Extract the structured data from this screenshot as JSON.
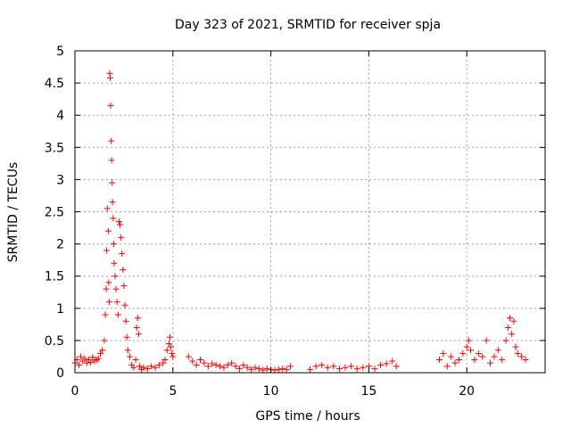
{
  "chart_data": {
    "type": "scatter",
    "title": "Day 323 of 2021, SRMTID for receiver spja",
    "xlabel": "GPS time / hours",
    "ylabel": "SRMTID / TECUs",
    "xlim": [
      0,
      24
    ],
    "ylim": [
      0,
      5
    ],
    "xticks": [
      0,
      5,
      10,
      15,
      20
    ],
    "xtick_labels": [
      "0",
      "5",
      "10",
      "15",
      "20"
    ],
    "yticks": [
      0,
      0.5,
      1,
      1.5,
      2,
      2.5,
      3,
      3.5,
      4,
      4.5,
      5
    ],
    "ytick_labels": [
      "0",
      "0.5",
      "1",
      "1.5",
      "2",
      "2.5",
      "3",
      "3.5",
      "4",
      "4.5",
      "5"
    ],
    "grid": true,
    "marker": "+",
    "color": "#ff0000",
    "series": [
      {
        "name": "SRMTID",
        "points": [
          [
            0.0,
            0.15
          ],
          [
            0.1,
            0.2
          ],
          [
            0.2,
            0.12
          ],
          [
            0.3,
            0.25
          ],
          [
            0.4,
            0.18
          ],
          [
            0.5,
            0.22
          ],
          [
            0.6,
            0.15
          ],
          [
            0.7,
            0.2
          ],
          [
            0.8,
            0.16
          ],
          [
            0.9,
            0.24
          ],
          [
            1.0,
            0.18
          ],
          [
            1.1,
            0.2
          ],
          [
            1.2,
            0.22
          ],
          [
            1.3,
            0.3
          ],
          [
            1.4,
            0.35
          ],
          [
            1.5,
            0.5
          ],
          [
            1.55,
            0.9
          ],
          [
            1.6,
            1.3
          ],
          [
            1.62,
            1.9
          ],
          [
            1.65,
            2.55
          ],
          [
            1.7,
            2.2
          ],
          [
            1.72,
            1.4
          ],
          [
            1.75,
            1.1
          ],
          [
            1.78,
            4.65
          ],
          [
            1.8,
            4.58
          ],
          [
            1.82,
            4.15
          ],
          [
            1.85,
            3.6
          ],
          [
            1.87,
            3.3
          ],
          [
            1.9,
            2.95
          ],
          [
            1.92,
            2.65
          ],
          [
            1.95,
            2.4
          ],
          [
            1.98,
            2.0
          ],
          [
            2.0,
            1.7
          ],
          [
            2.05,
            1.5
          ],
          [
            2.1,
            1.3
          ],
          [
            2.15,
            1.1
          ],
          [
            2.2,
            0.9
          ],
          [
            2.25,
            2.35
          ],
          [
            2.3,
            2.3
          ],
          [
            2.35,
            2.1
          ],
          [
            2.4,
            1.85
          ],
          [
            2.45,
            1.6
          ],
          [
            2.5,
            1.35
          ],
          [
            2.55,
            1.05
          ],
          [
            2.6,
            0.8
          ],
          [
            2.65,
            0.55
          ],
          [
            2.7,
            0.35
          ],
          [
            2.8,
            0.25
          ],
          [
            2.9,
            0.12
          ],
          [
            3.0,
            0.08
          ],
          [
            3.1,
            0.2
          ],
          [
            3.15,
            0.7
          ],
          [
            3.2,
            0.85
          ],
          [
            3.25,
            0.6
          ],
          [
            3.3,
            0.1
          ],
          [
            3.4,
            0.05
          ],
          [
            3.5,
            0.08
          ],
          [
            3.7,
            0.06
          ],
          [
            3.9,
            0.1
          ],
          [
            4.1,
            0.08
          ],
          [
            4.3,
            0.12
          ],
          [
            4.5,
            0.15
          ],
          [
            4.6,
            0.2
          ],
          [
            4.7,
            0.35
          ],
          [
            4.8,
            0.45
          ],
          [
            4.85,
            0.55
          ],
          [
            4.9,
            0.4
          ],
          [
            4.95,
            0.3
          ],
          [
            5.0,
            0.25
          ],
          [
            5.8,
            0.25
          ],
          [
            6.0,
            0.18
          ],
          [
            6.2,
            0.12
          ],
          [
            6.4,
            0.2
          ],
          [
            6.6,
            0.15
          ],
          [
            6.8,
            0.1
          ],
          [
            7.0,
            0.14
          ],
          [
            7.2,
            0.12
          ],
          [
            7.4,
            0.1
          ],
          [
            7.6,
            0.08
          ],
          [
            7.8,
            0.12
          ],
          [
            8.0,
            0.15
          ],
          [
            8.2,
            0.1
          ],
          [
            8.4,
            0.06
          ],
          [
            8.6,
            0.12
          ],
          [
            8.8,
            0.08
          ],
          [
            9.0,
            0.05
          ],
          [
            9.2,
            0.08
          ],
          [
            9.4,
            0.06
          ],
          [
            9.6,
            0.04
          ],
          [
            9.8,
            0.06
          ],
          [
            10.0,
            0.05
          ],
          [
            10.2,
            0.04
          ],
          [
            10.4,
            0.05
          ],
          [
            10.6,
            0.06
          ],
          [
            10.8,
            0.05
          ],
          [
            11.0,
            0.1
          ],
          [
            12.0,
            0.05
          ],
          [
            12.3,
            0.1
          ],
          [
            12.6,
            0.12
          ],
          [
            12.9,
            0.08
          ],
          [
            13.2,
            0.1
          ],
          [
            13.5,
            0.06
          ],
          [
            13.8,
            0.08
          ],
          [
            14.1,
            0.1
          ],
          [
            14.4,
            0.06
          ],
          [
            14.7,
            0.08
          ],
          [
            15.0,
            0.1
          ],
          [
            15.3,
            0.06
          ],
          [
            15.6,
            0.12
          ],
          [
            15.9,
            0.14
          ],
          [
            16.2,
            0.18
          ],
          [
            16.4,
            0.1
          ],
          [
            18.6,
            0.2
          ],
          [
            18.8,
            0.3
          ],
          [
            19.0,
            0.1
          ],
          [
            19.2,
            0.25
          ],
          [
            19.4,
            0.15
          ],
          [
            19.6,
            0.2
          ],
          [
            19.8,
            0.3
          ],
          [
            20.0,
            0.4
          ],
          [
            20.1,
            0.5
          ],
          [
            20.2,
            0.35
          ],
          [
            20.4,
            0.2
          ],
          [
            20.6,
            0.3
          ],
          [
            20.8,
            0.25
          ],
          [
            21.0,
            0.5
          ],
          [
            21.2,
            0.15
          ],
          [
            21.4,
            0.25
          ],
          [
            21.6,
            0.35
          ],
          [
            21.8,
            0.2
          ],
          [
            22.0,
            0.5
          ],
          [
            22.1,
            0.7
          ],
          [
            22.2,
            0.85
          ],
          [
            22.3,
            0.6
          ],
          [
            22.4,
            0.8
          ],
          [
            22.5,
            0.4
          ],
          [
            22.6,
            0.3
          ],
          [
            22.8,
            0.25
          ],
          [
            23.0,
            0.2
          ]
        ]
      }
    ]
  }
}
